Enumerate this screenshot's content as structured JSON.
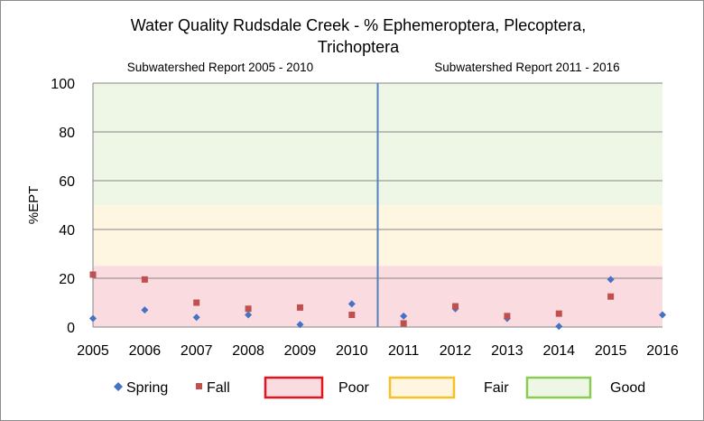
{
  "chart_data": {
    "type": "scatter",
    "title_lines": [
      "Water Quality Rudsdale Creek - % Ephemeroptera, Plecoptera,",
      "Trichoptera"
    ],
    "ylabel": "%EPT",
    "xlabel": "",
    "x": [
      2005,
      2006,
      2007,
      2008,
      2009,
      2010,
      2011,
      2012,
      2013,
      2014,
      2015,
      2016
    ],
    "ylim": [
      0,
      100
    ],
    "yticks": [
      0,
      20,
      40,
      60,
      80,
      100
    ],
    "grid": true,
    "legend_position": "bottom",
    "series": [
      {
        "name": "Spring",
        "marker": "diamond",
        "color": "#4472C4",
        "points": [
          [
            2005,
            3.5
          ],
          [
            2006,
            7.0
          ],
          [
            2007,
            4.0
          ],
          [
            2008,
            5.0
          ],
          [
            2009,
            1.0
          ],
          [
            2010,
            9.5
          ],
          [
            2011,
            4.5
          ],
          [
            2012,
            7.5
          ],
          [
            2013,
            3.5
          ],
          [
            2014,
            0.3
          ],
          [
            2015,
            19.5
          ],
          [
            2016,
            5.0
          ]
        ]
      },
      {
        "name": "Fall",
        "marker": "square",
        "color": "#C0504D",
        "points": [
          [
            2005,
            21.5
          ],
          [
            2006,
            19.5
          ],
          [
            2007,
            10.0
          ],
          [
            2008,
            7.5
          ],
          [
            2009,
            8.0
          ],
          [
            2010,
            5.0
          ],
          [
            2011,
            1.5
          ],
          [
            2012,
            8.5
          ],
          [
            2013,
            4.5
          ],
          [
            2014,
            5.5
          ],
          [
            2015,
            12.5
          ]
        ]
      }
    ],
    "bands": [
      {
        "name": "Poor",
        "from": 0,
        "to": 25,
        "fill": "#FADBDF",
        "border": "#E2141D"
      },
      {
        "name": "Fair",
        "from": 25,
        "to": 50,
        "fill": "#FEF6E0",
        "border": "#F7C027"
      },
      {
        "name": "Good",
        "from": 50,
        "to": 100,
        "fill": "#EEF6E6",
        "border": "#8CCB53"
      }
    ],
    "divider": {
      "color": "#4F81BD"
    },
    "annotations": [
      {
        "text": "Subwatershed  Report 2005 - 2010"
      },
      {
        "text": "Subwatershed  Report 2011 - 2016"
      }
    ]
  }
}
